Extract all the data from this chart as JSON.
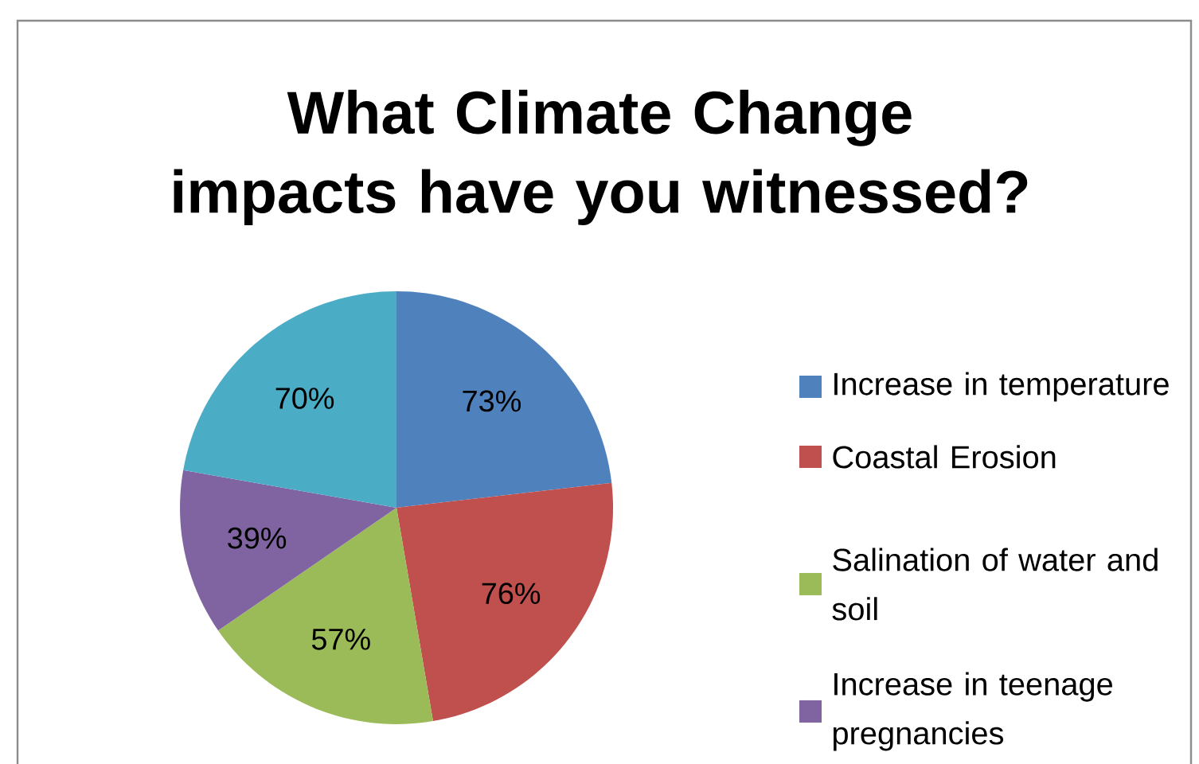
{
  "chart_data": {
    "type": "pie",
    "title": "What Climate Change impacts have you witnessed?",
    "categories": [
      "Increase in temperature",
      "Coastal Erosion",
      "Salination of water and soil",
      "Increase in teenage pregnancies",
      null
    ],
    "values": [
      73,
      76,
      57,
      39,
      70
    ],
    "colors": [
      "#4f81bd",
      "#c0504d",
      "#9bbb59",
      "#8064a2",
      "#4bacc6"
    ],
    "value_labels": [
      "73%",
      "76%",
      "57%",
      "39%",
      "70%"
    ],
    "legend": "right"
  }
}
